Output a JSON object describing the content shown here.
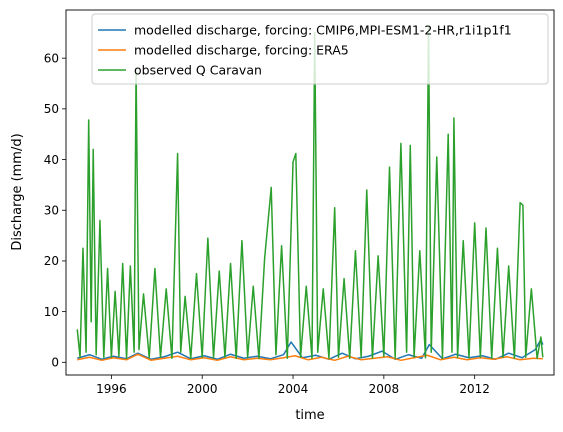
{
  "chart_data": {
    "type": "line",
    "xlabel": "time",
    "ylabel": "Discharge (mm/d)",
    "xlim": [
      "1994-01-01",
      "2015-06-30"
    ],
    "ylim": [
      -2.5,
      69.5
    ],
    "x_ticks": [
      "1996",
      "2000",
      "2004",
      "2008",
      "2012"
    ],
    "y_ticks": [
      0,
      10,
      20,
      30,
      40,
      50,
      60
    ],
    "grid": false,
    "legend_position": "top-right",
    "legend": [
      "modelled discharge, forcing: CMIP6,MPI-ESM1-2-HR,r1i1p1f1",
      "modelled discharge, forcing: ERA5",
      "observed Q Caravan"
    ],
    "series": [
      {
        "name": "modelled discharge, forcing: CMIP6,MPI-ESM1-2-HR,r1i1p1f1",
        "color": "#1f77b4",
        "x": [
          "1994-07-01",
          "1995-01-15",
          "1995-08-01",
          "1996-02-01",
          "1996-09-01",
          "1997-03-01",
          "1997-10-01",
          "1998-05-01",
          "1998-12-01",
          "1999-07-01",
          "2000-02-01",
          "2000-09-01",
          "2001-04-01",
          "2001-11-01",
          "2002-06-01",
          "2003-01-01",
          "2003-08-01",
          "2003-12-01",
          "2004-06-01",
          "2005-01-01",
          "2005-08-01",
          "2006-03-01",
          "2006-10-01",
          "2007-05-01",
          "2007-12-01",
          "2008-07-01",
          "2009-02-01",
          "2009-09-01",
          "2010-01-01",
          "2010-08-01",
          "2011-03-01",
          "2011-10-01",
          "2012-05-01",
          "2012-12-01",
          "2013-07-01",
          "2014-02-01",
          "2014-09-01",
          "2014-12-01",
          "2015-01-01"
        ],
        "values": [
          0.8,
          1.5,
          0.6,
          1.2,
          0.7,
          1.8,
          0.6,
          1.1,
          2.0,
          0.7,
          1.3,
          0.6,
          1.6,
          0.8,
          1.2,
          0.7,
          1.5,
          4.0,
          0.9,
          1.4,
          0.6,
          1.8,
          0.7,
          1.2,
          2.2,
          0.6,
          1.5,
          0.8,
          3.5,
          0.7,
          1.6,
          0.9,
          1.3,
          0.6,
          1.8,
          0.9,
          2.5,
          4.5,
          3.5
        ]
      },
      {
        "name": "modelled discharge, forcing: ERA5",
        "color": "#ff7f0e",
        "x": [
          "1994-07-01",
          "1995-01-15",
          "1995-08-01",
          "1996-02-01",
          "1996-09-01",
          "1997-03-01",
          "1997-10-01",
          "1998-05-01",
          "1998-12-01",
          "1999-07-01",
          "2000-02-01",
          "2000-09-01",
          "2001-04-01",
          "2001-11-01",
          "2002-06-01",
          "2003-01-01",
          "2003-08-01",
          "2004-02-01",
          "2004-09-01",
          "2005-04-01",
          "2005-11-01",
          "2006-06-01",
          "2007-01-01",
          "2007-08-01",
          "2008-03-01",
          "2008-10-01",
          "2009-05-01",
          "2009-12-01",
          "2010-07-01",
          "2011-02-01",
          "2011-09-01",
          "2012-04-01",
          "2012-11-01",
          "2013-06-01",
          "2014-01-01",
          "2014-08-01",
          "2015-01-01"
        ],
        "values": [
          0.5,
          1.0,
          0.4,
          0.9,
          0.5,
          1.6,
          0.4,
          0.8,
          1.2,
          0.5,
          0.9,
          0.4,
          1.1,
          0.5,
          0.8,
          0.5,
          0.9,
          1.3,
          0.5,
          1.0,
          0.4,
          1.2,
          0.5,
          0.8,
          1.1,
          0.4,
          0.9,
          1.4,
          0.5,
          1.0,
          0.5,
          0.9,
          0.6,
          1.1,
          0.5,
          0.8,
          0.7
        ]
      },
      {
        "name": "observed Q Caravan",
        "color": "#2ca02c",
        "x": [
          "1994-07-01",
          "1994-08-15",
          "1994-10-01",
          "1994-11-20",
          "1995-01-01",
          "1995-02-10",
          "1995-03-15",
          "1995-05-01",
          "1995-07-01",
          "1995-09-01",
          "1995-11-01",
          "1996-01-01",
          "1996-03-01",
          "1996-05-01",
          "1996-07-01",
          "1996-09-01",
          "1996-11-01",
          "1997-01-01",
          "1997-02-01",
          "1997-03-20",
          "1997-06-01",
          "1997-09-01",
          "1997-12-01",
          "1998-03-01",
          "1998-06-01",
          "1998-09-01",
          "1998-12-01",
          "1999-01-20",
          "1999-04-01",
          "1999-07-01",
          "1999-10-01",
          "2000-01-01",
          "2000-04-01",
          "2000-07-01",
          "2000-10-01",
          "2001-01-01",
          "2001-04-01",
          "2001-07-01",
          "2001-10-01",
          "2002-01-01",
          "2002-04-01",
          "2002-07-01",
          "2002-10-01",
          "2003-01-15",
          "2003-04-01",
          "2003-07-01",
          "2003-10-01",
          "2004-01-01",
          "2004-02-15",
          "2004-05-01",
          "2004-08-01",
          "2004-11-01",
          "2004-12-15",
          "2005-02-01",
          "2005-05-01",
          "2005-08-01",
          "2005-11-01",
          "2006-01-01",
          "2006-04-01",
          "2006-07-01",
          "2006-10-01",
          "2007-01-01",
          "2007-04-01",
          "2007-07-01",
          "2007-10-01",
          "2008-01-01",
          "2008-04-01",
          "2008-07-01",
          "2008-10-01",
          "2009-01-01",
          "2009-03-01",
          "2009-05-01",
          "2009-08-01",
          "2009-11-01",
          "2009-12-20",
          "2010-02-01",
          "2010-05-01",
          "2010-08-01",
          "2010-11-01",
          "2011-01-01",
          "2011-02-01",
          "2011-04-01",
          "2011-07-01",
          "2011-10-01",
          "2012-01-01",
          "2012-04-01",
          "2012-07-01",
          "2012-10-01",
          "2013-01-01",
          "2013-04-01",
          "2013-07-01",
          "2013-10-01",
          "2014-01-01",
          "2014-02-15",
          "2014-04-01",
          "2014-07-01",
          "2014-10-01",
          "2014-12-01",
          "2015-01-01"
        ],
        "values": [
          6.5,
          1.0,
          22.5,
          2.0,
          47.8,
          8.0,
          42.0,
          1.5,
          28.0,
          1.0,
          18.5,
          1.0,
          14.0,
          1.2,
          19.5,
          0.8,
          19.0,
          2.0,
          58.0,
          2.5,
          13.5,
          0.9,
          18.5,
          1.0,
          14.5,
          0.8,
          41.2,
          2.0,
          13.0,
          0.8,
          17.5,
          1.0,
          24.5,
          0.9,
          18.0,
          1.0,
          19.5,
          0.8,
          24.0,
          1.0,
          15.0,
          0.8,
          20.5,
          34.5,
          1.5,
          23.0,
          0.8,
          39.5,
          41.2,
          1.0,
          15.0,
          0.8,
          65.0,
          2.0,
          14.5,
          0.8,
          30.5,
          1.0,
          16.5,
          0.8,
          22.0,
          1.0,
          34.0,
          0.8,
          21.0,
          1.2,
          38.5,
          0.8,
          43.2,
          2.0,
          42.8,
          1.0,
          22.0,
          0.9,
          66.0,
          2.0,
          40.5,
          0.8,
          45.0,
          2.0,
          48.2,
          1.0,
          24.0,
          0.9,
          27.5,
          1.0,
          26.5,
          0.8,
          22.5,
          1.0,
          19.0,
          0.8,
          31.5,
          31.0,
          1.0,
          14.5,
          0.8,
          5.0,
          1.0
        ]
      }
    ]
  }
}
